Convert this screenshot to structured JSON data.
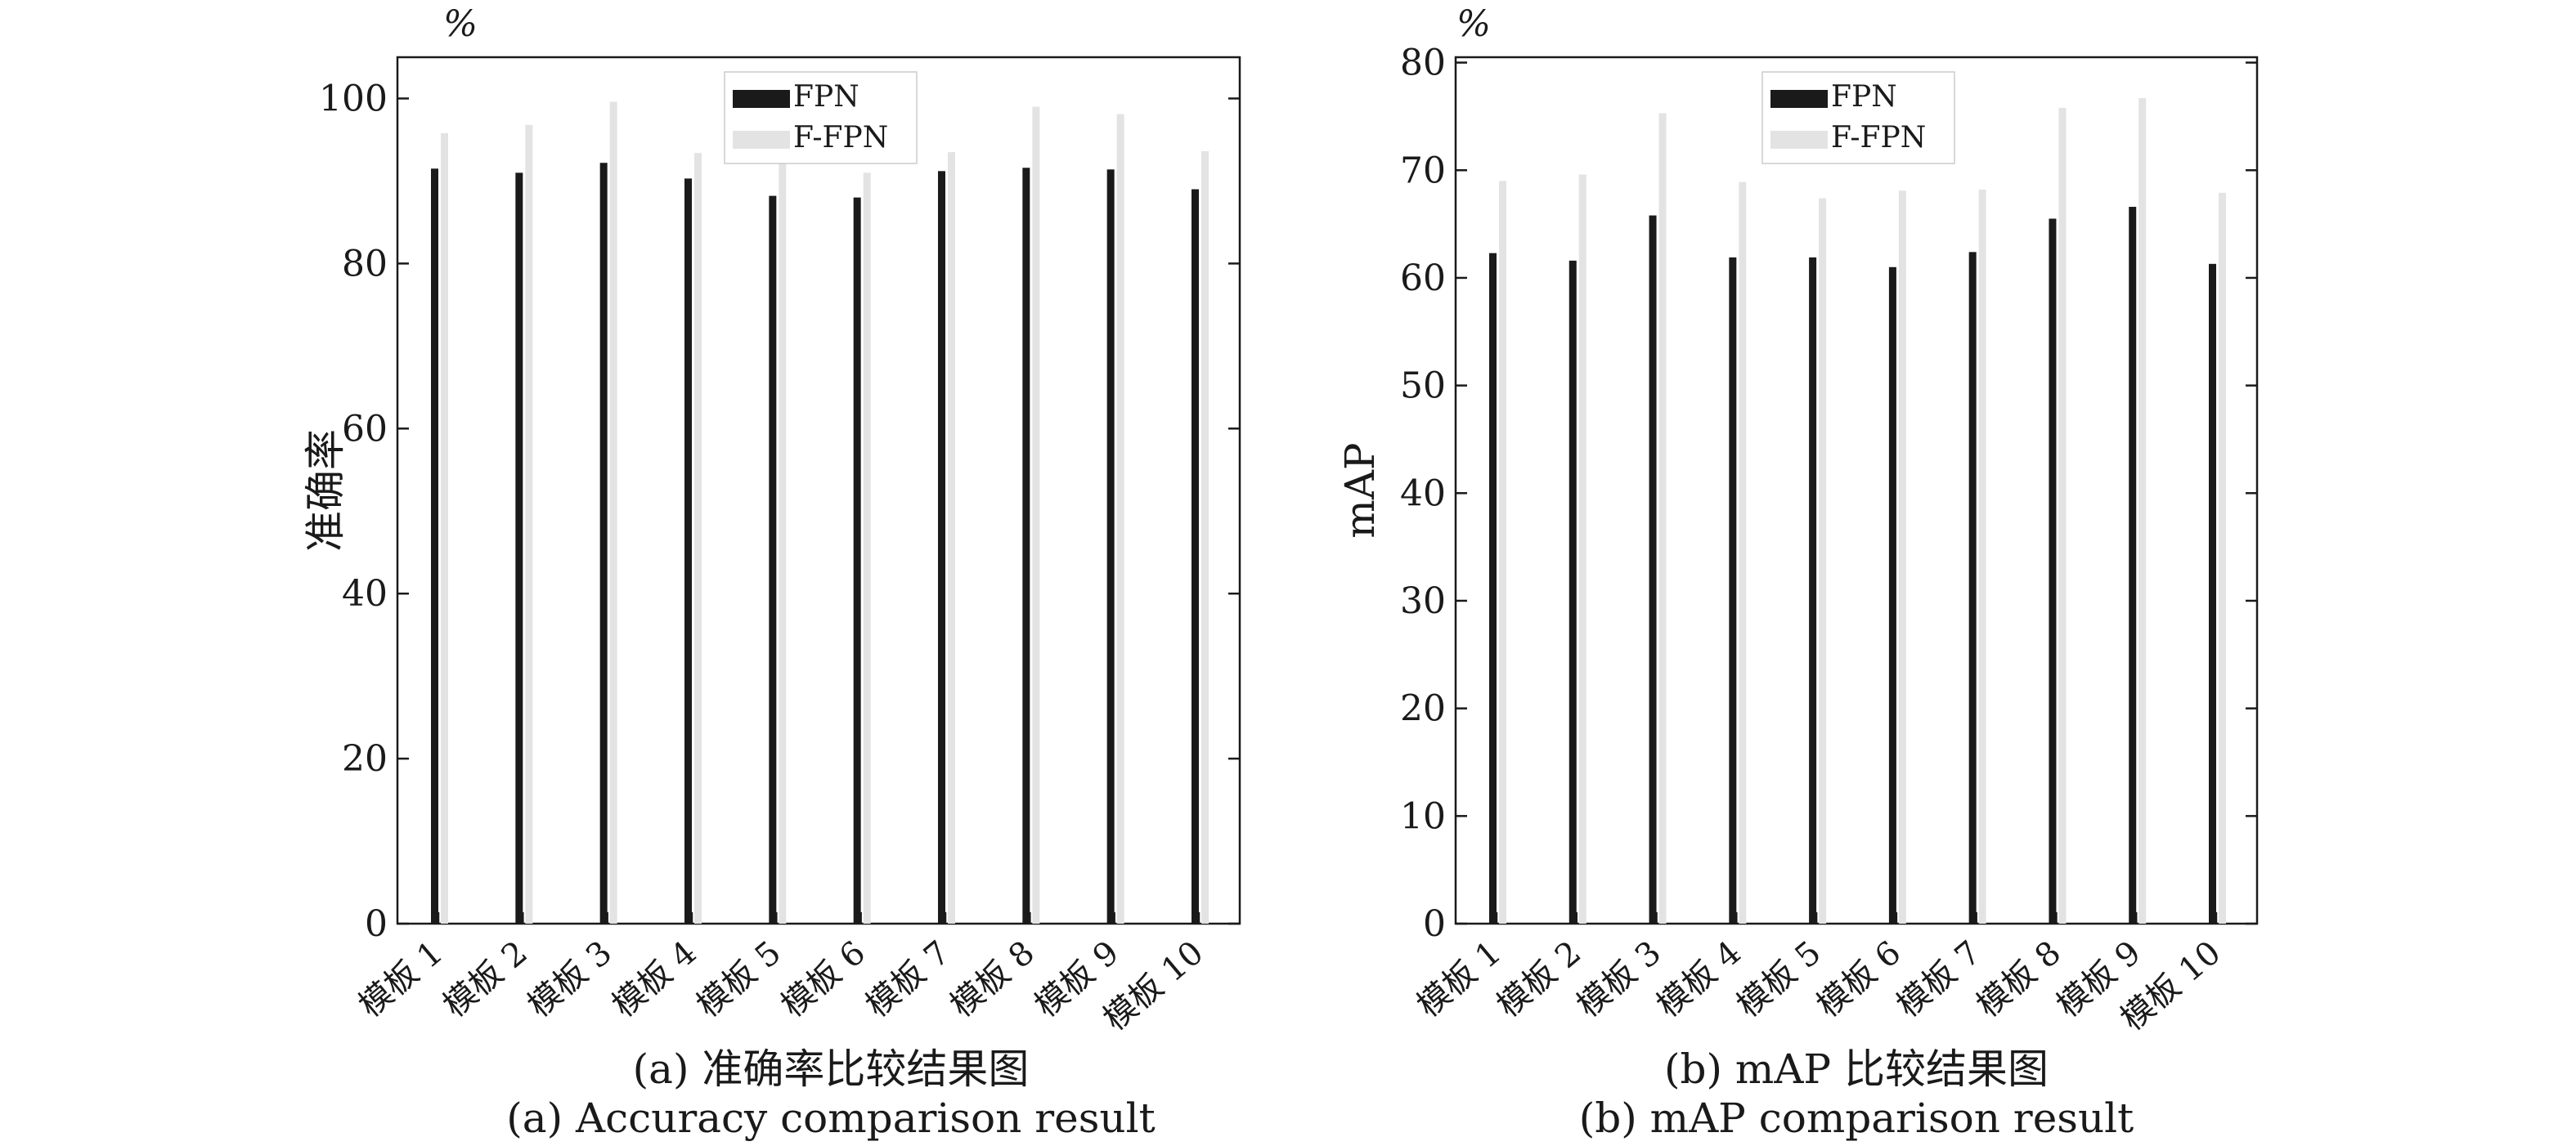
{
  "charts": [
    {
      "unit_label": "%",
      "caption_cn": "(a) 准确率比较结果图",
      "caption_en": "(a) Accuracy comparison result"
    },
    {
      "unit_label": "%",
      "caption_cn": "(b) mAP 比较结果图",
      "caption_en": "(b) mAP comparison result"
    }
  ],
  "colors": {
    "FPN": "#1a1a1a",
    "F-FPN": "#e3e3e3",
    "axis": "#1a1a1a"
  },
  "chart_data": [
    {
      "type": "bar",
      "title": "",
      "xlabel": "",
      "ylabel": "准确率",
      "ylim": [
        0,
        105
      ],
      "yticks": [
        0,
        20,
        40,
        60,
        80,
        100
      ],
      "grid": false,
      "legend_position": "top-center",
      "categories": [
        "模板 1",
        "模板 2",
        "模板 3",
        "模板 4",
        "模板 5",
        "模板 6",
        "模板 7",
        "模板 8",
        "模板 9",
        "模板 10"
      ],
      "series": [
        {
          "name": "FPN",
          "values": [
            91.5,
            91.0,
            92.2,
            90.3,
            88.2,
            88.0,
            91.2,
            91.6,
            91.4,
            89.0
          ]
        },
        {
          "name": "F-FPN",
          "values": [
            95.8,
            96.8,
            99.6,
            93.4,
            92.5,
            91.0,
            93.5,
            99.0,
            98.1,
            93.6
          ]
        }
      ]
    },
    {
      "type": "bar",
      "title": "",
      "xlabel": "",
      "ylabel": "mAP",
      "ylim": [
        0,
        80.5
      ],
      "yticks": [
        0,
        10,
        20,
        30,
        40,
        50,
        60,
        70,
        80
      ],
      "grid": false,
      "legend_position": "top-center",
      "categories": [
        "模板 1",
        "模板 2",
        "模板 3",
        "模板 4",
        "模板 5",
        "模板 6",
        "模板 7",
        "模板 8",
        "模板 9",
        "模板 10"
      ],
      "series": [
        {
          "name": "FPN",
          "values": [
            62.3,
            61.6,
            65.8,
            61.9,
            61.9,
            61.0,
            62.4,
            65.5,
            66.6,
            61.3
          ]
        },
        {
          "name": "F-FPN",
          "values": [
            69.0,
            69.6,
            75.3,
            68.9,
            67.4,
            68.1,
            68.2,
            75.8,
            76.7,
            67.9
          ]
        }
      ]
    }
  ]
}
